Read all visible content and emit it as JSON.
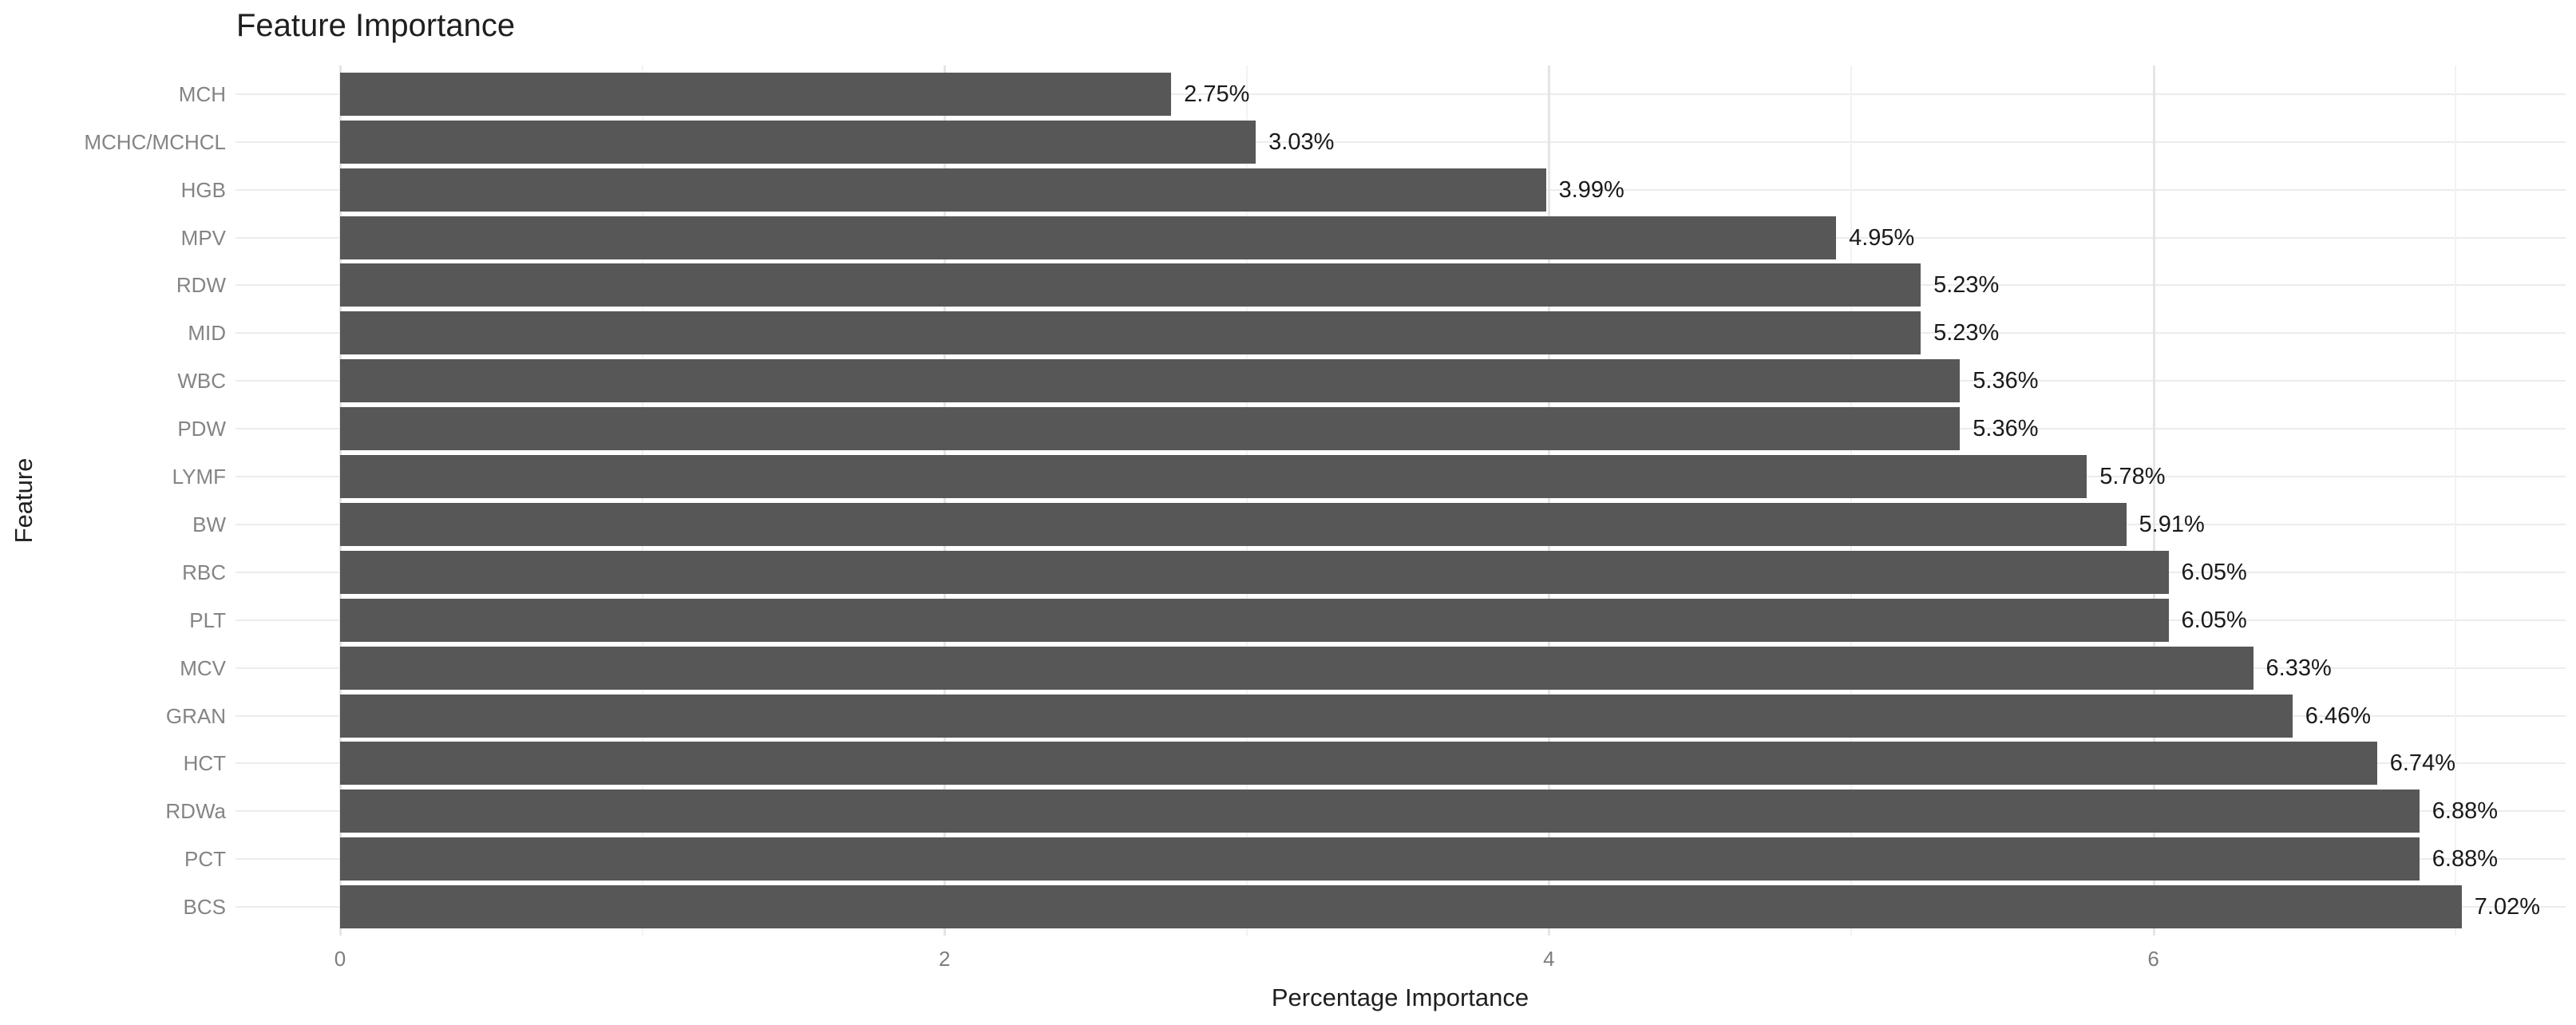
{
  "chart_data": {
    "type": "bar",
    "orientation": "horizontal",
    "title": "Feature Importance",
    "xlabel": "Percentage Importance",
    "ylabel": "Feature",
    "categories": [
      "MCH",
      "MCHC/MCHCL",
      "HGB",
      "MPV",
      "RDW",
      "MID",
      "WBC",
      "PDW",
      "LYMF",
      "BW",
      "RBC",
      "PLT",
      "MCV",
      "GRAN",
      "HCT",
      "RDWa",
      "PCT",
      "BCS"
    ],
    "values": [
      2.75,
      3.03,
      3.99,
      4.95,
      5.23,
      5.23,
      5.36,
      5.36,
      5.78,
      5.91,
      6.05,
      6.05,
      6.33,
      6.46,
      6.74,
      6.88,
      6.88,
      7.02
    ],
    "bar_labels": [
      "2.75%",
      "3.03%",
      "3.99%",
      "4.95%",
      "5.23%",
      "5.23%",
      "5.36%",
      "5.36%",
      "5.78%",
      "5.91%",
      "6.05%",
      "6.05%",
      "6.33%",
      "6.46%",
      "6.74%",
      "6.88%",
      "6.88%",
      "7.02%"
    ],
    "x_ticks": [
      {
        "value": 0,
        "label": "0"
      },
      {
        "value": 2,
        "label": "2"
      },
      {
        "value": 4,
        "label": "4"
      },
      {
        "value": 6,
        "label": "6"
      }
    ],
    "x_minor_gridlines": [
      1,
      3,
      5,
      7
    ],
    "xlim": [
      0,
      7.37
    ],
    "grid": true,
    "legend": false,
    "bar_color": "#575757",
    "value_label_color": "#1a1a1a",
    "axis_text_color": "#848484",
    "grid_color": "#ececec",
    "background_color": "#ffffff"
  }
}
